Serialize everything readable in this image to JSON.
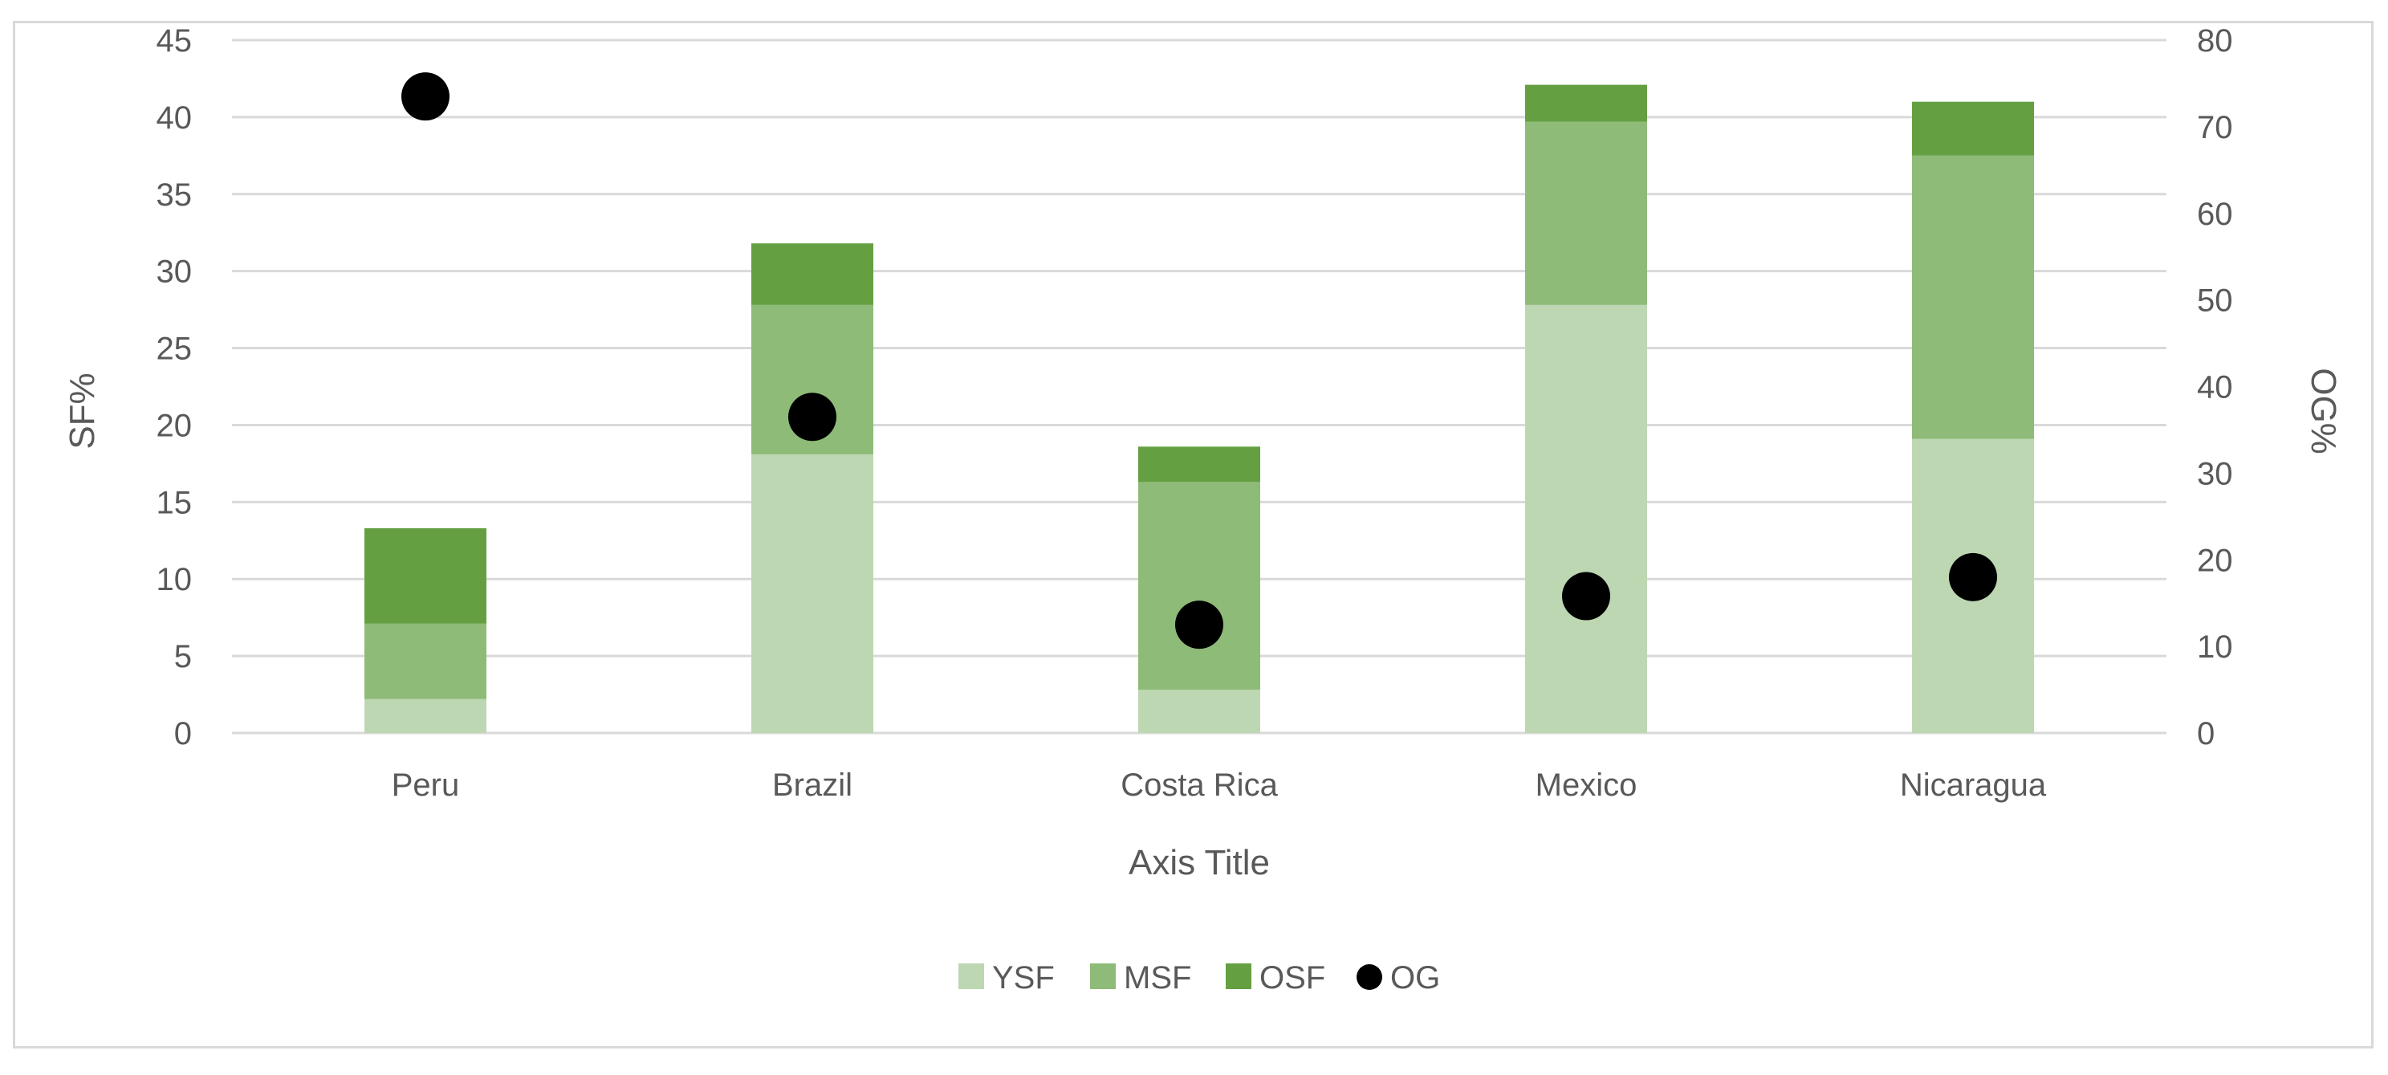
{
  "chart_data": {
    "type": "bar",
    "stacked": true,
    "title": "",
    "categories": [
      "Peru",
      "Brazil",
      "Costa Rica",
      "Mexico",
      "Nicaragua"
    ],
    "series": [
      {
        "name": "YSF",
        "type": "bar",
        "axis": "left",
        "color": "#bdd7b3",
        "values": [
          2.2,
          18.1,
          2.8,
          27.8,
          19.1
        ]
      },
      {
        "name": "MSF",
        "type": "bar",
        "axis": "left",
        "color": "#8fbb78",
        "values": [
          4.9,
          9.7,
          13.5,
          11.9,
          18.4
        ]
      },
      {
        "name": "OSF",
        "type": "bar",
        "axis": "left",
        "color": "#64a042",
        "values": [
          6.2,
          4.0,
          2.3,
          2.4,
          3.5
        ]
      },
      {
        "name": "OG",
        "type": "scatter",
        "axis": "right",
        "color": "#000000",
        "values": [
          73.5,
          36.5,
          12.5,
          15.8,
          18.0
        ]
      }
    ],
    "xlabel": "Axis Title",
    "ylabel": "SF%",
    "y2label": "OG%",
    "ylim": [
      0,
      45
    ],
    "y2lim": [
      0,
      80
    ],
    "yticks": [
      "0",
      "5",
      "10",
      "15",
      "20",
      "25",
      "30",
      "35",
      "40",
      "45"
    ],
    "y2ticks": [
      "0",
      "10",
      "20",
      "30",
      "40",
      "50",
      "60",
      "70",
      "80"
    ],
    "grid": true,
    "legend_position": "bottom"
  }
}
